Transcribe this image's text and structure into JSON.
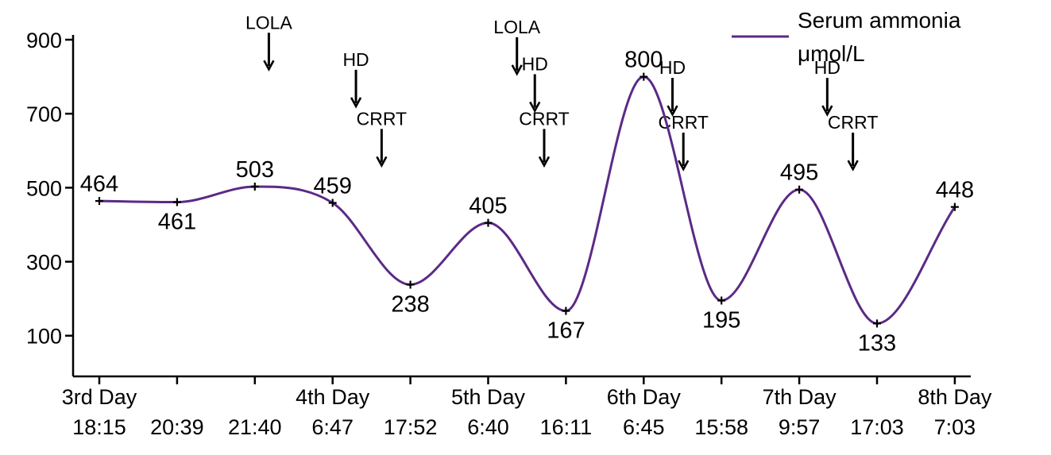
{
  "chart_data": {
    "type": "line",
    "x_top": [
      "3rd Day",
      "",
      "",
      "4th Day",
      "",
      "5th Day",
      "",
      "6th Day",
      "",
      "7th Day",
      "",
      "8th Day"
    ],
    "x_bottom": [
      "18:15",
      "20:39",
      "21:40",
      "6:47",
      "17:52",
      "6:40",
      "16:11",
      "6:45",
      "15:58",
      "9:57",
      "17:03",
      "7:03"
    ],
    "series": [
      {
        "name": "Serum ammonia μmol/L",
        "color": "#5b2a86",
        "values": [
          464,
          461,
          503,
          459,
          238,
          405,
          167,
          800,
          195,
          495,
          133,
          448
        ]
      }
    ],
    "yticks": [
      100,
      300,
      500,
      700,
      900
    ],
    "ylim": [
      -10,
      900
    ],
    "annotations": [
      {
        "text": "LOLA",
        "after_index": 2,
        "offset": 0.18,
        "value": 820
      },
      {
        "text": "HD",
        "after_index": 3,
        "offset": 0.3,
        "value": 720
      },
      {
        "text": "CRRT",
        "after_index": 3,
        "offset": 0.63,
        "value": 560
      },
      {
        "text": "LOLA",
        "after_index": 5,
        "offset": 0.37,
        "value": 808
      },
      {
        "text": "HD",
        "after_index": 5,
        "offset": 0.6,
        "value": 708
      },
      {
        "text": "CRRT",
        "after_index": 5,
        "offset": 0.72,
        "value": 560
      },
      {
        "text": "HD",
        "after_index": 7,
        "offset": 0.37,
        "value": 698
      },
      {
        "text": "CRRT",
        "after_index": 7,
        "offset": 0.51,
        "value": 550
      },
      {
        "text": "HD",
        "after_index": 9,
        "offset": 0.36,
        "value": 698
      },
      {
        "text": "CRRT",
        "after_index": 9,
        "offset": 0.69,
        "value": 550
      }
    ],
    "legend": {
      "line1": "Serum ammonia",
      "line2": "μmol/L",
      "position": "top-right"
    },
    "grid": false
  }
}
